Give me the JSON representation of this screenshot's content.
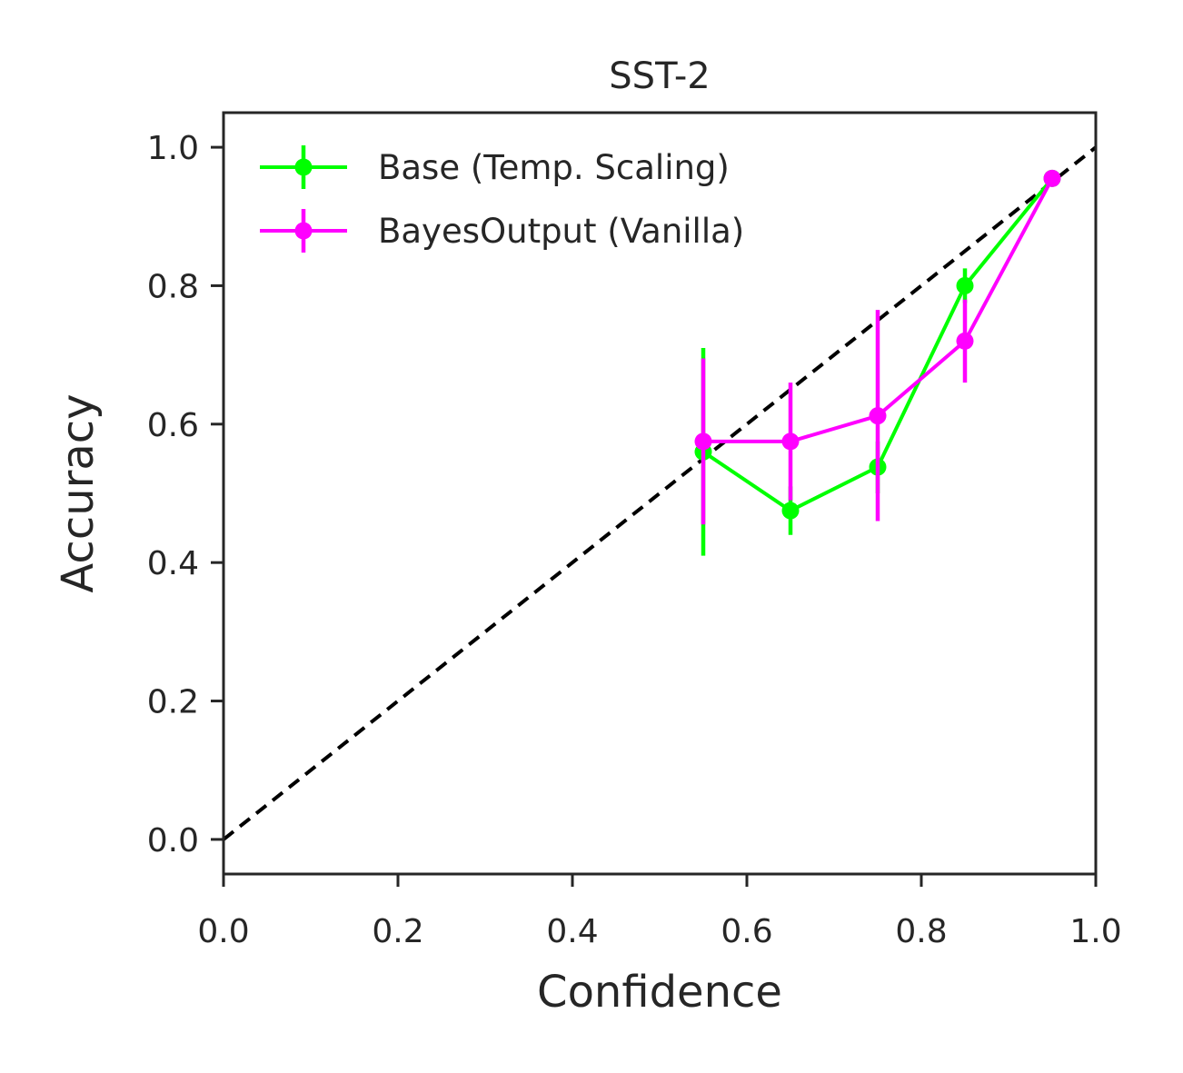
{
  "chart_data": {
    "type": "line",
    "title": "SST-2",
    "xlabel": "Confidence",
    "ylabel": "Accuracy",
    "xlim": [
      0.0,
      1.0
    ],
    "ylim": [
      -0.05,
      1.05
    ],
    "xticks": [
      "0.0",
      "0.2",
      "0.4",
      "0.6",
      "0.8",
      "1.0"
    ],
    "yticks": [
      "0.0",
      "0.2",
      "0.4",
      "0.6",
      "0.8",
      "1.0"
    ],
    "grid": false,
    "legend_position": "top-left",
    "reference_line": {
      "style": "dashed",
      "color": "#000000",
      "x": [
        0.0,
        1.0
      ],
      "y": [
        0.0,
        1.0
      ]
    },
    "series": [
      {
        "name": "Base (Temp. Scaling)",
        "color": "#00ff00",
        "x": [
          0.55,
          0.65,
          0.75,
          0.85,
          0.95
        ],
        "y": [
          0.56,
          0.475,
          0.538,
          0.8,
          0.955
        ],
        "error_low": [
          0.41,
          0.44,
          0.5,
          0.775,
          0.945
        ],
        "error_high": [
          0.71,
          0.51,
          0.575,
          0.825,
          0.965
        ]
      },
      {
        "name": "BayesOutput (Vanilla)",
        "color": "#ff00ff",
        "x": [
          0.55,
          0.65,
          0.75,
          0.85,
          0.95
        ],
        "y": [
          0.575,
          0.575,
          0.612,
          0.72,
          0.955
        ],
        "error_low": [
          0.455,
          0.49,
          0.46,
          0.66,
          0.945
        ],
        "error_high": [
          0.695,
          0.66,
          0.765,
          0.78,
          0.965
        ]
      }
    ]
  }
}
